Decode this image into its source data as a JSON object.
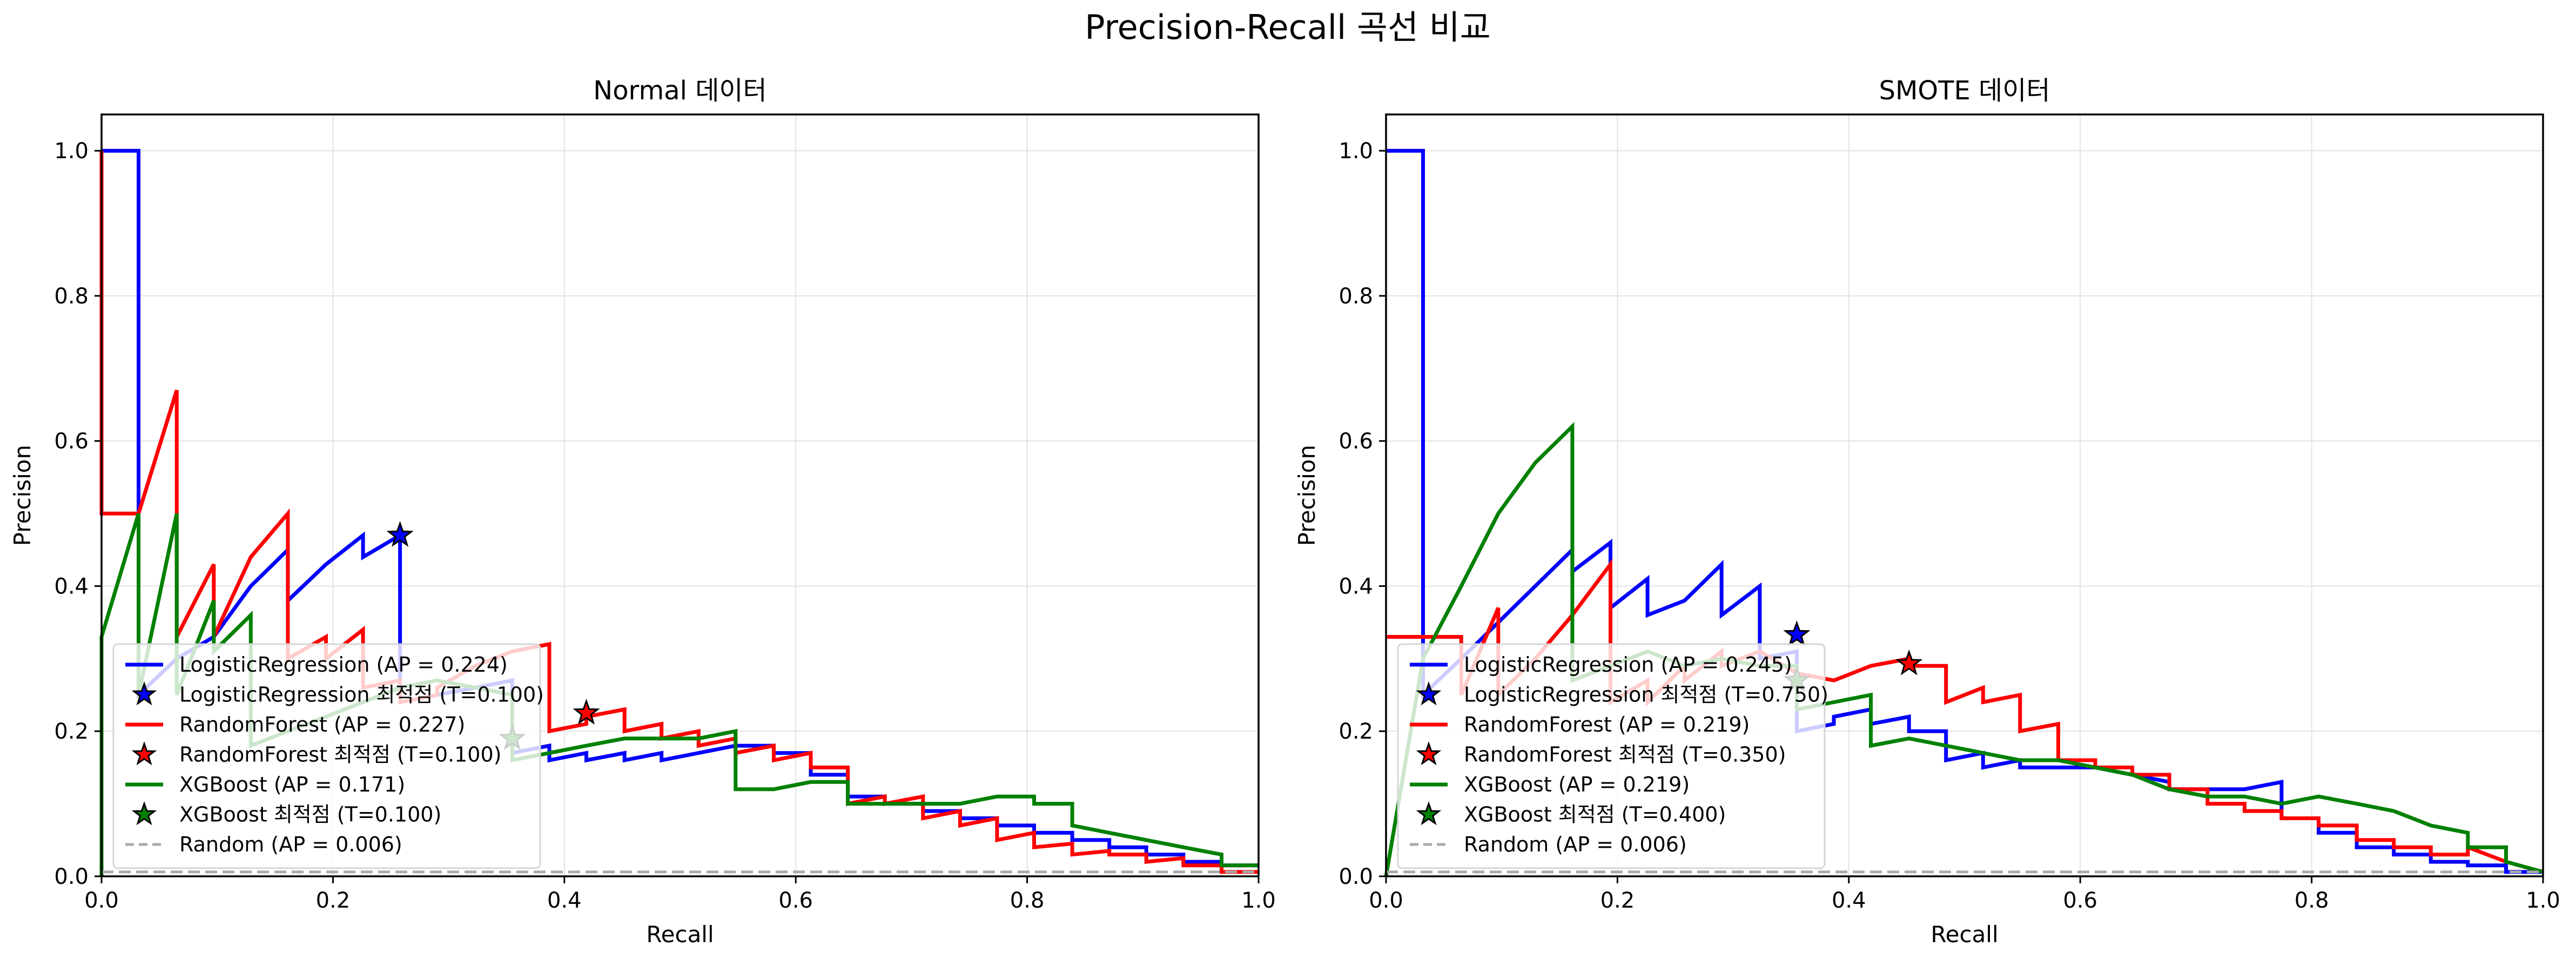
{
  "title": "Precision-Recall 곡선 비교",
  "colors": {
    "LogisticRegression": "#0000ff",
    "RandomForest": "#ff0000",
    "XGBoost": "#008000",
    "Random": "#aaaaaa"
  },
  "chart_data": [
    {
      "type": "line",
      "title": "Normal 데이터",
      "xlabel": "Recall",
      "ylabel": "Precision",
      "xlim": [
        0,
        1
      ],
      "ylim": [
        0,
        1.05
      ],
      "xticks": [
        "0.0",
        "0.2",
        "0.4",
        "0.6",
        "0.8",
        "1.0"
      ],
      "yticks": [
        "0.0",
        "0.2",
        "0.4",
        "0.6",
        "0.8",
        "1.0"
      ],
      "grid": true,
      "legend_position": "lower-left",
      "series": [
        {
          "name": "LogisticRegression (AP = 0.224)",
          "color": "#0000ff",
          "x": [
            0,
            0,
            0.032,
            0.032,
            0.032,
            0.065,
            0.097,
            0.129,
            0.161,
            0.161,
            0.194,
            0.226,
            0.226,
            0.258,
            0.258,
            0.29,
            0.323,
            0.355,
            0.355,
            0.387,
            0.387,
            0.419,
            0.419,
            0.452,
            0.452,
            0.484,
            0.484,
            0.516,
            0.516,
            0.548,
            0.548,
            0.581,
            0.581,
            0.613,
            0.613,
            0.645,
            0.645,
            0.677,
            0.677,
            0.71,
            0.71,
            0.742,
            0.742,
            0.774,
            0.774,
            0.806,
            0.806,
            0.839,
            0.839,
            0.871,
            0.871,
            0.903,
            0.903,
            0.935,
            0.935,
            0.968,
            0.968,
            1.0
          ],
          "y": [
            1.0,
            1.0,
            1.0,
            0.5,
            0.25,
            0.3,
            0.33,
            0.4,
            0.45,
            0.38,
            0.43,
            0.47,
            0.44,
            0.47,
            0.24,
            0.25,
            0.26,
            0.27,
            0.17,
            0.18,
            0.16,
            0.17,
            0.16,
            0.17,
            0.16,
            0.17,
            0.16,
            0.17,
            0.17,
            0.18,
            0.18,
            0.18,
            0.17,
            0.17,
            0.14,
            0.14,
            0.11,
            0.11,
            0.1,
            0.1,
            0.09,
            0.09,
            0.08,
            0.08,
            0.07,
            0.07,
            0.06,
            0.06,
            0.05,
            0.05,
            0.04,
            0.04,
            0.03,
            0.03,
            0.02,
            0.02,
            0.015,
            0.015
          ]
        },
        {
          "name": "RandomForest (AP = 0.227)",
          "color": "#ff0000",
          "x": [
            0,
            0,
            0.032,
            0.032,
            0.065,
            0.065,
            0.065,
            0.097,
            0.097,
            0.129,
            0.161,
            0.161,
            0.194,
            0.194,
            0.226,
            0.226,
            0.258,
            0.258,
            0.29,
            0.29,
            0.323,
            0.355,
            0.387,
            0.387,
            0.419,
            0.419,
            0.452,
            0.452,
            0.484,
            0.484,
            0.516,
            0.516,
            0.548,
            0.548,
            0.581,
            0.581,
            0.613,
            0.613,
            0.645,
            0.645,
            0.677,
            0.677,
            0.71,
            0.71,
            0.742,
            0.742,
            0.774,
            0.774,
            0.806,
            0.806,
            0.839,
            0.839,
            0.871,
            0.871,
            0.903,
            0.903,
            0.935,
            0.935,
            0.968,
            0.968,
            1.0
          ],
          "y": [
            1.0,
            0.5,
            0.5,
            0.5,
            0.67,
            0.5,
            0.33,
            0.43,
            0.33,
            0.44,
            0.5,
            0.3,
            0.33,
            0.3,
            0.34,
            0.26,
            0.27,
            0.24,
            0.25,
            0.26,
            0.29,
            0.31,
            0.32,
            0.2,
            0.21,
            0.22,
            0.23,
            0.2,
            0.21,
            0.19,
            0.2,
            0.18,
            0.19,
            0.17,
            0.18,
            0.16,
            0.17,
            0.15,
            0.15,
            0.1,
            0.11,
            0.1,
            0.11,
            0.08,
            0.09,
            0.07,
            0.08,
            0.05,
            0.06,
            0.04,
            0.045,
            0.03,
            0.035,
            0.03,
            0.03,
            0.02,
            0.025,
            0.015,
            0.015,
            0.006,
            0.006
          ]
        },
        {
          "name": "XGBoost (AP = 0.171)",
          "color": "#008000",
          "x": [
            0,
            0,
            0.032,
            0.032,
            0.065,
            0.065,
            0.097,
            0.097,
            0.129,
            0.129,
            0.161,
            0.194,
            0.226,
            0.258,
            0.29,
            0.323,
            0.355,
            0.355,
            0.387,
            0.419,
            0.452,
            0.484,
            0.516,
            0.548,
            0.548,
            0.581,
            0.613,
            0.645,
            0.645,
            0.677,
            0.71,
            0.742,
            0.774,
            0.806,
            0.806,
            0.839,
            0.839,
            0.871,
            0.903,
            0.935,
            0.968,
            0.968,
            1.0
          ],
          "y": [
            0,
            0.33,
            0.5,
            0.25,
            0.5,
            0.25,
            0.38,
            0.31,
            0.36,
            0.18,
            0.2,
            0.22,
            0.24,
            0.26,
            0.27,
            0.26,
            0.25,
            0.16,
            0.17,
            0.18,
            0.19,
            0.19,
            0.19,
            0.2,
            0.12,
            0.12,
            0.13,
            0.13,
            0.1,
            0.1,
            0.1,
            0.1,
            0.11,
            0.11,
            0.1,
            0.1,
            0.07,
            0.06,
            0.05,
            0.04,
            0.03,
            0.015,
            0.015
          ]
        },
        {
          "name": "Random (AP = 0.006)",
          "color": "#aaaaaa",
          "dashed": true,
          "x": [
            0,
            1
          ],
          "y": [
            0.006,
            0.006
          ]
        }
      ],
      "optimal_points": [
        {
          "name": "LogisticRegression 최적점 (T=0.100)",
          "color": "#0000ff",
          "x": 0.258,
          "y": 0.47
        },
        {
          "name": "RandomForest 최적점 (T=0.100)",
          "color": "#ff0000",
          "x": 0.419,
          "y": 0.225
        },
        {
          "name": "XGBoost 최적점 (T=0.100)",
          "color": "#008000",
          "x": 0.355,
          "y": 0.19
        }
      ]
    },
    {
      "type": "line",
      "title": "SMOTE 데이터",
      "xlabel": "Recall",
      "ylabel": "Precision",
      "xlim": [
        0,
        1
      ],
      "ylim": [
        0,
        1.05
      ],
      "xticks": [
        "0.0",
        "0.2",
        "0.4",
        "0.6",
        "0.8",
        "1.0"
      ],
      "yticks": [
        "0.0",
        "0.2",
        "0.4",
        "0.6",
        "0.8",
        "1.0"
      ],
      "grid": true,
      "legend_position": "lower-left",
      "series": [
        {
          "name": "LogisticRegression (AP = 0.245)",
          "color": "#0000ff",
          "x": [
            0,
            0,
            0.032,
            0.032,
            0.032,
            0.065,
            0.097,
            0.129,
            0.161,
            0.161,
            0.194,
            0.194,
            0.194,
            0.226,
            0.226,
            0.258,
            0.29,
            0.29,
            0.323,
            0.323,
            0.355,
            0.355,
            0.387,
            0.387,
            0.419,
            0.419,
            0.452,
            0.452,
            0.484,
            0.484,
            0.516,
            0.516,
            0.548,
            0.548,
            0.581,
            0.613,
            0.645,
            0.677,
            0.677,
            0.71,
            0.742,
            0.774,
            0.774,
            0.806,
            0.806,
            0.839,
            0.839,
            0.871,
            0.871,
            0.903,
            0.903,
            0.935,
            0.935,
            0.968,
            0.968,
            1.0
          ],
          "y": [
            1.0,
            1.0,
            1.0,
            0.5,
            0.25,
            0.3,
            0.35,
            0.4,
            0.45,
            0.42,
            0.46,
            0.42,
            0.37,
            0.41,
            0.36,
            0.38,
            0.43,
            0.36,
            0.4,
            0.3,
            0.31,
            0.2,
            0.21,
            0.22,
            0.23,
            0.21,
            0.22,
            0.2,
            0.2,
            0.16,
            0.17,
            0.15,
            0.16,
            0.15,
            0.15,
            0.15,
            0.14,
            0.13,
            0.12,
            0.12,
            0.12,
            0.13,
            0.08,
            0.08,
            0.06,
            0.06,
            0.04,
            0.04,
            0.03,
            0.03,
            0.02,
            0.02,
            0.015,
            0.015,
            0.006,
            0.006
          ]
        },
        {
          "name": "RandomForest (AP = 0.219)",
          "color": "#ff0000",
          "x": [
            0,
            0.032,
            0.065,
            0.065,
            0.097,
            0.097,
            0.129,
            0.161,
            0.194,
            0.194,
            0.226,
            0.226,
            0.258,
            0.258,
            0.29,
            0.29,
            0.323,
            0.355,
            0.387,
            0.419,
            0.452,
            0.452,
            0.484,
            0.484,
            0.516,
            0.516,
            0.548,
            0.548,
            0.581,
            0.581,
            0.613,
            0.613,
            0.645,
            0.645,
            0.677,
            0.677,
            0.71,
            0.71,
            0.742,
            0.742,
            0.774,
            0.774,
            0.806,
            0.806,
            0.839,
            0.839,
            0.871,
            0.871,
            0.903,
            0.903,
            0.935,
            0.935,
            0.968,
            1.0
          ],
          "y": [
            0.33,
            0.33,
            0.33,
            0.25,
            0.37,
            0.25,
            0.3,
            0.36,
            0.43,
            0.24,
            0.27,
            0.24,
            0.29,
            0.27,
            0.31,
            0.29,
            0.31,
            0.28,
            0.27,
            0.29,
            0.3,
            0.29,
            0.29,
            0.24,
            0.26,
            0.24,
            0.25,
            0.2,
            0.21,
            0.16,
            0.16,
            0.15,
            0.15,
            0.14,
            0.14,
            0.12,
            0.12,
            0.1,
            0.1,
            0.09,
            0.09,
            0.08,
            0.08,
            0.07,
            0.07,
            0.05,
            0.05,
            0.04,
            0.04,
            0.03,
            0.03,
            0.04,
            0.02,
            0.006
          ]
        },
        {
          "name": "XGBoost (AP = 0.219)",
          "color": "#008000",
          "x": [
            0,
            0.032,
            0.065,
            0.097,
            0.129,
            0.161,
            0.161,
            0.194,
            0.226,
            0.258,
            0.29,
            0.323,
            0.355,
            0.355,
            0.387,
            0.419,
            0.419,
            0.452,
            0.484,
            0.516,
            0.548,
            0.581,
            0.613,
            0.645,
            0.677,
            0.71,
            0.742,
            0.774,
            0.806,
            0.839,
            0.871,
            0.903,
            0.935,
            0.935,
            0.968,
            0.968,
            1.0
          ],
          "y": [
            0,
            0.3,
            0.4,
            0.5,
            0.57,
            0.62,
            0.27,
            0.29,
            0.31,
            0.29,
            0.3,
            0.29,
            0.29,
            0.23,
            0.24,
            0.25,
            0.18,
            0.19,
            0.18,
            0.17,
            0.16,
            0.16,
            0.15,
            0.14,
            0.12,
            0.11,
            0.11,
            0.1,
            0.11,
            0.1,
            0.09,
            0.07,
            0.06,
            0.04,
            0.04,
            0.02,
            0.006
          ]
        },
        {
          "name": "Random (AP = 0.006)",
          "color": "#aaaaaa",
          "dashed": true,
          "x": [
            0,
            1
          ],
          "y": [
            0.006,
            0.006
          ]
        }
      ],
      "optimal_points": [
        {
          "name": "LogisticRegression 최적점 (T=0.750)",
          "color": "#0000ff",
          "x": 0.355,
          "y": 0.333
        },
        {
          "name": "RandomForest 최적점 (T=0.350)",
          "color": "#ff0000",
          "x": 0.452,
          "y": 0.293
        },
        {
          "name": "XGBoost 최적점 (T=0.400)",
          "color": "#008000",
          "x": 0.355,
          "y": 0.27
        }
      ]
    }
  ]
}
